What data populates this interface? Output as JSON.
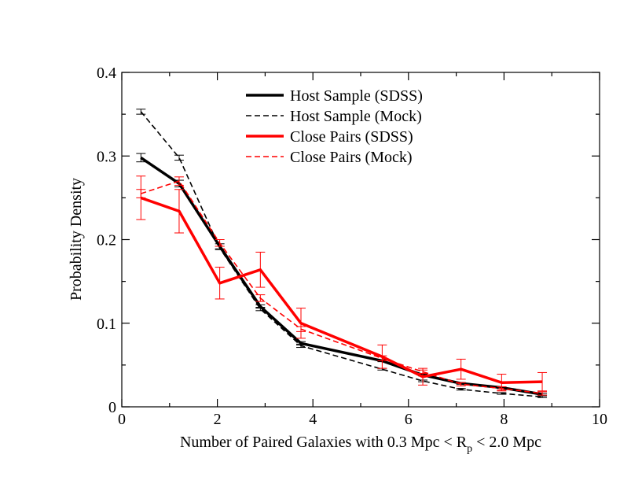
{
  "chart_data": {
    "type": "line",
    "title": "",
    "xlabel": "Number of Paired Galaxies with 0.3 Mpc < R",
    "xlabel_sub": "p",
    "xlabel_tail": " < 2.0 Mpc",
    "ylabel": "Probability Density",
    "xlim": [
      0,
      10
    ],
    "ylim": [
      0,
      0.4
    ],
    "xticks": [
      0,
      2,
      4,
      6,
      8,
      10
    ],
    "xtick_labels": [
      "0",
      "2",
      "4",
      "6",
      "8",
      "10"
    ],
    "yticks": [
      0,
      0.1,
      0.2,
      0.3,
      0.4
    ],
    "ytick_labels": [
      "0",
      "0.1",
      "0.2",
      "0.3",
      "0.4"
    ],
    "grid": false,
    "legend_position": "top-center",
    "series": [
      {
        "name": "Host Sample (SDSS)",
        "color": "#000000",
        "style": "solid",
        "x": [
          0.4,
          1.2,
          2.05,
          2.9,
          3.75,
          5.45,
          6.3,
          7.1,
          7.95,
          8.8
        ],
        "y": [
          0.298,
          0.267,
          0.192,
          0.12,
          0.076,
          0.055,
          0.038,
          0.028,
          0.023,
          0.015
        ],
        "err": [
          0.005,
          0.004,
          0.003,
          0.002,
          0.002,
          0.001,
          0.001,
          0.001,
          0.001,
          0.001
        ]
      },
      {
        "name": "Host Sample (Mock)",
        "color": "#000000",
        "style": "dashed",
        "x": [
          0.4,
          1.2,
          2.05,
          2.9,
          3.75,
          5.45,
          6.3,
          7.1,
          7.95,
          8.8
        ],
        "y": [
          0.353,
          0.298,
          0.19,
          0.117,
          0.073,
          0.045,
          0.031,
          0.021,
          0.016,
          0.012
        ],
        "err": [
          0.003,
          0.003,
          0.002,
          0.002,
          0.002,
          0.001,
          0.001,
          0.001,
          0.001,
          0.001
        ]
      },
      {
        "name": "Close Pairs (SDSS)",
        "color": "#ff0000",
        "style": "solid",
        "x": [
          0.4,
          1.2,
          2.05,
          2.9,
          3.75,
          5.45,
          6.3,
          7.1,
          7.95,
          8.8
        ],
        "y": [
          0.25,
          0.234,
          0.148,
          0.164,
          0.1,
          0.06,
          0.036,
          0.045,
          0.029,
          0.03
        ],
        "err": [
          0.026,
          0.026,
          0.019,
          0.021,
          0.018,
          0.014,
          0.01,
          0.012,
          0.01,
          0.011
        ]
      },
      {
        "name": "Close Pairs (Mock)",
        "color": "#ff0000",
        "style": "dashed",
        "x": [
          0.4,
          1.2,
          2.05,
          2.9,
          3.75,
          5.45,
          6.3,
          7.1,
          7.95,
          8.8
        ],
        "y": [
          0.255,
          0.27,
          0.196,
          0.13,
          0.093,
          0.058,
          0.042,
          0.027,
          0.022,
          0.016
        ],
        "err": [
          0.005,
          0.005,
          0.004,
          0.004,
          0.003,
          0.003,
          0.002,
          0.002,
          0.002,
          0.002
        ]
      }
    ]
  }
}
